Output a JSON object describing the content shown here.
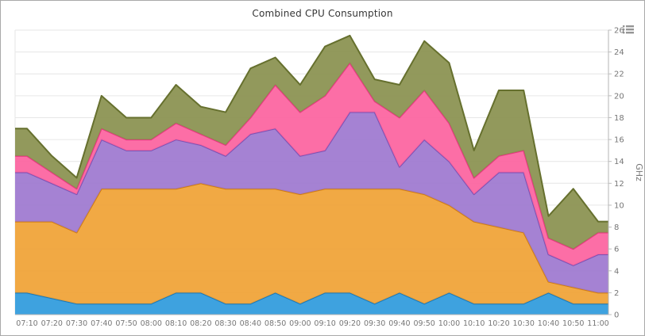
{
  "chart": {
    "title": "Combined CPU Consumption"
  },
  "chart_data": {
    "type": "area",
    "stacked": true,
    "title": "Combined CPU Consumption",
    "xlabel": "",
    "ylabel": "GHz",
    "ylim": [
      0,
      26
    ],
    "y_ticks": [
      0,
      2,
      4,
      6,
      8,
      10,
      12,
      14,
      16,
      18,
      20,
      22,
      24,
      26
    ],
    "grid": true,
    "legend": "none",
    "categories": [
      "07:10",
      "07:20",
      "07:30",
      "07:40",
      "07:50",
      "08:00",
      "08:10",
      "08:20",
      "08:30",
      "08:40",
      "08:50",
      "09:00",
      "09:10",
      "09:20",
      "09:30",
      "09:40",
      "09:50",
      "10:00",
      "10:10",
      "10:20",
      "10:30",
      "10:40",
      "10:50",
      "11:00"
    ],
    "series": [
      {
        "name": "blue",
        "fill": "#2f9bdd",
        "stroke": "#1877b8",
        "values": [
          2,
          1.5,
          1,
          1,
          1,
          1,
          2,
          2,
          1,
          1,
          2,
          1,
          2,
          2,
          1,
          2,
          1,
          2,
          1,
          1,
          1,
          2,
          1,
          1
        ]
      },
      {
        "name": "orange",
        "fill": "#f0a236",
        "stroke": "#d07d10",
        "values": [
          6.5,
          7,
          6.5,
          10.5,
          10.5,
          10.5,
          9.5,
          10,
          10.5,
          10.5,
          9.5,
          10,
          9.5,
          9.5,
          10.5,
          9.5,
          10,
          8,
          7.5,
          7,
          6.5,
          1,
          1.5,
          1
        ]
      },
      {
        "name": "purple",
        "fill": "#9e79d0",
        "stroke": "#7b52b4",
        "values": [
          4.5,
          3.5,
          3.5,
          4.5,
          3.5,
          3.5,
          4.5,
          3.5,
          3,
          5,
          5.5,
          3.5,
          3.5,
          7,
          7,
          2,
          5,
          4,
          2.5,
          5,
          5.5,
          2.5,
          2,
          3.5
        ]
      },
      {
        "name": "pink",
        "fill": "#fc639f",
        "stroke": "#e83580",
        "values": [
          1.5,
          1,
          0.5,
          1,
          1,
          1,
          1.5,
          1,
          1,
          1.5,
          4,
          4,
          5,
          4.5,
          1,
          4.5,
          4.5,
          3.5,
          1.5,
          1.5,
          2,
          1.5,
          1.5,
          2
        ]
      },
      {
        "name": "olive",
        "fill": "#8a9150",
        "stroke": "#66702e",
        "values": [
          2.5,
          1.5,
          1,
          3,
          2,
          2,
          3.5,
          2.5,
          3,
          4.5,
          2.5,
          2.5,
          4.5,
          2.5,
          2,
          3,
          4.5,
          5.5,
          2.5,
          6,
          5.5,
          2,
          5.5,
          1
        ]
      }
    ]
  }
}
